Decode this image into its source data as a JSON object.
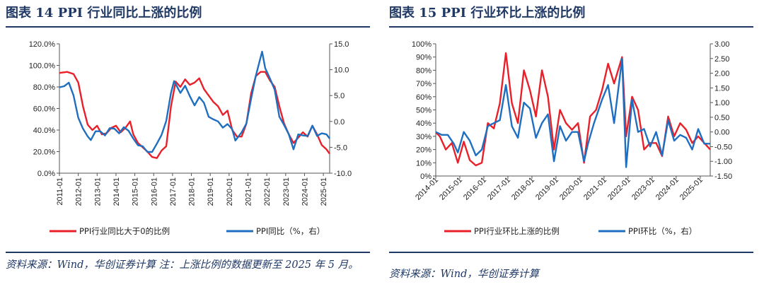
{
  "figures": [
    {
      "title": "图表 14   PPI 行业同比上涨的比例",
      "source": "资料来源：Wind，华创证券计算 注：上涨比例的数据更新至 2025 年 5 月。",
      "chart_data": {
        "type": "line",
        "x_ticks": [
          "2011-01",
          "2012-01",
          "2013-01",
          "2014-01",
          "2015-01",
          "2016-01",
          "2017-01",
          "2018-01",
          "2019-01",
          "2020-01",
          "2021-01",
          "2022-01",
          "2023-01",
          "2024-01",
          "2025-01"
        ],
        "x_range": [
          "2011-01",
          "2025-05"
        ],
        "y_left": {
          "ticks": [
            "0.0%",
            "20.0%",
            "40.0%",
            "60.0%",
            "80.0%",
            "100.0%",
            "120.0%"
          ],
          "min": 0,
          "max": 120
        },
        "y_right": {
          "ticks": [
            "-10.0",
            "-5.0",
            "0.0",
            "5.0",
            "10.0",
            "15.0"
          ],
          "min": -10,
          "max": 15
        },
        "series": [
          {
            "name": "PPI行业同比大于0的比例",
            "color": "#e8202a",
            "axis": "left",
            "points": [
              [
                "2011-01",
                93
              ],
              [
                "2011-06",
                94
              ],
              [
                "2011-10",
                92
              ],
              [
                "2012-01",
                84
              ],
              [
                "2012-04",
                62
              ],
              [
                "2012-07",
                45
              ],
              [
                "2012-10",
                40
              ],
              [
                "2013-01",
                44
              ],
              [
                "2013-04",
                36
              ],
              [
                "2013-07",
                37
              ],
              [
                "2013-10",
                42
              ],
              [
                "2014-01",
                44
              ],
              [
                "2014-04",
                38
              ],
              [
                "2014-07",
                42
              ],
              [
                "2014-10",
                48
              ],
              [
                "2014-12",
                36
              ],
              [
                "2015-03",
                28
              ],
              [
                "2015-06",
                24
              ],
              [
                "2015-09",
                20
              ],
              [
                "2015-12",
                15
              ],
              [
                "2016-03",
                14
              ],
              [
                "2016-06",
                21
              ],
              [
                "2016-09",
                25
              ],
              [
                "2016-12",
                62
              ],
              [
                "2017-03",
                85
              ],
              [
                "2017-06",
                80
              ],
              [
                "2017-09",
                87
              ],
              [
                "2017-12",
                82
              ],
              [
                "2018-03",
                84
              ],
              [
                "2018-06",
                88
              ],
              [
                "2018-09",
                78
              ],
              [
                "2018-12",
                72
              ],
              [
                "2019-03",
                66
              ],
              [
                "2019-06",
                62
              ],
              [
                "2019-09",
                54
              ],
              [
                "2019-12",
                58
              ],
              [
                "2020-03",
                40
              ],
              [
                "2020-06",
                34
              ],
              [
                "2020-09",
                34
              ],
              [
                "2020-12",
                46
              ],
              [
                "2021-03",
                74
              ],
              [
                "2021-06",
                90
              ],
              [
                "2021-09",
                94
              ],
              [
                "2021-12",
                94
              ],
              [
                "2022-03",
                86
              ],
              [
                "2022-06",
                80
              ],
              [
                "2022-09",
                62
              ],
              [
                "2022-12",
                46
              ],
              [
                "2023-03",
                36
              ],
              [
                "2023-06",
                28
              ],
              [
                "2023-09",
                33
              ],
              [
                "2023-12",
                38
              ],
              [
                "2024-03",
                34
              ],
              [
                "2024-06",
                44
              ],
              [
                "2024-09",
                36
              ],
              [
                "2024-12",
                26
              ],
              [
                "2025-03",
                22
              ],
              [
                "2025-05",
                18
              ]
            ]
          },
          {
            "name": "PPI同比（%，右）",
            "color": "#1f6fc1",
            "axis": "right",
            "points": [
              [
                "2011-01",
                6.6
              ],
              [
                "2011-04",
                6.8
              ],
              [
                "2011-07",
                7.5
              ],
              [
                "2011-10",
                5.0
              ],
              [
                "2012-01",
                0.7
              ],
              [
                "2012-04",
                -1.4
              ],
              [
                "2012-07",
                -2.9
              ],
              [
                "2012-09",
                -3.6
              ],
              [
                "2012-12",
                -1.9
              ],
              [
                "2013-03",
                -1.9
              ],
              [
                "2013-06",
                -2.7
              ],
              [
                "2013-09",
                -1.3
              ],
              [
                "2013-12",
                -1.4
              ],
              [
                "2014-03",
                -2.3
              ],
              [
                "2014-06",
                -1.1
              ],
              [
                "2014-09",
                -1.8
              ],
              [
                "2014-12",
                -3.3
              ],
              [
                "2015-03",
                -4.6
              ],
              [
                "2015-06",
                -4.8
              ],
              [
                "2015-09",
                -5.9
              ],
              [
                "2015-12",
                -5.9
              ],
              [
                "2016-03",
                -4.3
              ],
              [
                "2016-06",
                -2.6
              ],
              [
                "2016-09",
                0.1
              ],
              [
                "2016-12",
                5.5
              ],
              [
                "2017-02",
                7.8
              ],
              [
                "2017-06",
                5.5
              ],
              [
                "2017-09",
                6.9
              ],
              [
                "2017-12",
                4.9
              ],
              [
                "2018-03",
                3.1
              ],
              [
                "2018-06",
                4.7
              ],
              [
                "2018-09",
                3.6
              ],
              [
                "2018-12",
                0.9
              ],
              [
                "2019-03",
                0.4
              ],
              [
                "2019-06",
                0.0
              ],
              [
                "2019-09",
                -1.2
              ],
              [
                "2019-12",
                -0.5
              ],
              [
                "2020-03",
                -1.5
              ],
              [
                "2020-05",
                -3.7
              ],
              [
                "2020-09",
                -2.1
              ],
              [
                "2020-12",
                -0.4
              ],
              [
                "2021-03",
                4.4
              ],
              [
                "2021-06",
                8.8
              ],
              [
                "2021-10",
                13.5
              ],
              [
                "2021-12",
                10.3
              ],
              [
                "2022-03",
                8.3
              ],
              [
                "2022-06",
                6.1
              ],
              [
                "2022-09",
                0.9
              ],
              [
                "2022-12",
                -0.7
              ],
              [
                "2023-03",
                -2.5
              ],
              [
                "2023-06",
                -5.4
              ],
              [
                "2023-09",
                -2.5
              ],
              [
                "2023-12",
                -2.7
              ],
              [
                "2024-03",
                -2.8
              ],
              [
                "2024-06",
                -0.8
              ],
              [
                "2024-09",
                -2.8
              ],
              [
                "2024-12",
                -2.3
              ],
              [
                "2025-03",
                -2.5
              ],
              [
                "2025-05",
                -3.3
              ]
            ]
          }
        ]
      }
    },
    {
      "title": "图表 15   PPI 行业环比上涨的比例",
      "source": "资料来源：Wind，华创证券计算",
      "chart_data": {
        "type": "line",
        "x_ticks": [
          "2014-01",
          "2015-01",
          "2016-01",
          "2017-01",
          "2018-01",
          "2019-01",
          "2020-01",
          "2021-01",
          "2022-01",
          "2023-01",
          "2024-01",
          "2025-01"
        ],
        "x_range": [
          "2014-01",
          "2025-06"
        ],
        "y_left": {
          "ticks": [
            "0%",
            "10%",
            "20%",
            "30%",
            "40%",
            "50%",
            "60%",
            "70%",
            "80%",
            "90%",
            "100%"
          ],
          "min": 0,
          "max": 100
        },
        "y_right": {
          "ticks": [
            "-1.50",
            "-1.00",
            "-0.50",
            "0.00",
            "0.50",
            "1.00",
            "1.50",
            "2.00",
            "2.50",
            "3.00"
          ],
          "min": -1.5,
          "max": 3.0
        },
        "series": [
          {
            "name": "PPI行业环比上涨的比例",
            "color": "#e8202a",
            "axis": "left",
            "points": [
              [
                "2014-01",
                33
              ],
              [
                "2014-03",
                30
              ],
              [
                "2014-06",
                20
              ],
              [
                "2014-09",
                25
              ],
              [
                "2014-12",
                10
              ],
              [
                "2015-03",
                26
              ],
              [
                "2015-06",
                12
              ],
              [
                "2015-09",
                8
              ],
              [
                "2015-12",
                10
              ],
              [
                "2016-03",
                40
              ],
              [
                "2016-06",
                36
              ],
              [
                "2016-09",
                55
              ],
              [
                "2016-12",
                93
              ],
              [
                "2017-03",
                55
              ],
              [
                "2017-06",
                40
              ],
              [
                "2017-09",
                80
              ],
              [
                "2017-12",
                65
              ],
              [
                "2018-03",
                45
              ],
              [
                "2018-06",
                80
              ],
              [
                "2018-09",
                60
              ],
              [
                "2018-12",
                20
              ],
              [
                "2019-03",
                50
              ],
              [
                "2019-06",
                40
              ],
              [
                "2019-09",
                35
              ],
              [
                "2019-12",
                40
              ],
              [
                "2020-03",
                10
              ],
              [
                "2020-06",
                45
              ],
              [
                "2020-09",
                50
              ],
              [
                "2020-12",
                65
              ],
              [
                "2021-03",
                85
              ],
              [
                "2021-06",
                70
              ],
              [
                "2021-10",
                90
              ],
              [
                "2021-12",
                30
              ],
              [
                "2022-03",
                60
              ],
              [
                "2022-06",
                50
              ],
              [
                "2022-09",
                20
              ],
              [
                "2022-12",
                25
              ],
              [
                "2023-03",
                25
              ],
              [
                "2023-06",
                15
              ],
              [
                "2023-09",
                45
              ],
              [
                "2023-12",
                30
              ],
              [
                "2024-03",
                40
              ],
              [
                "2024-06",
                35
              ],
              [
                "2024-09",
                25
              ],
              [
                "2024-12",
                30
              ],
              [
                "2025-03",
                25
              ],
              [
                "2025-06",
                20
              ]
            ]
          },
          {
            "name": "PPI环比（%，右）",
            "color": "#1f6fc1",
            "axis": "right",
            "points": [
              [
                "2014-01",
                0.0
              ],
              [
                "2014-04",
                -0.1
              ],
              [
                "2014-07",
                -0.1
              ],
              [
                "2014-10",
                -0.4
              ],
              [
                "2014-12",
                -0.7
              ],
              [
                "2015-03",
                0.0
              ],
              [
                "2015-06",
                -0.3
              ],
              [
                "2015-09",
                -0.8
              ],
              [
                "2015-12",
                -0.6
              ],
              [
                "2016-03",
                0.2
              ],
              [
                "2016-06",
                0.3
              ],
              [
                "2016-09",
                0.4
              ],
              [
                "2016-12",
                1.6
              ],
              [
                "2017-03",
                0.2
              ],
              [
                "2017-06",
                -0.2
              ],
              [
                "2017-09",
                1.0
              ],
              [
                "2017-12",
                0.8
              ],
              [
                "2018-03",
                -0.2
              ],
              [
                "2018-06",
                0.3
              ],
              [
                "2018-09",
                0.6
              ],
              [
                "2018-12",
                -1.0
              ],
              [
                "2019-03",
                0.2
              ],
              [
                "2019-06",
                -0.3
              ],
              [
                "2019-09",
                0.0
              ],
              [
                "2019-12",
                0.0
              ],
              [
                "2020-03",
                -1.0
              ],
              [
                "2020-05",
                -0.4
              ],
              [
                "2020-08",
                0.3
              ],
              [
                "2020-12",
                1.1
              ],
              [
                "2021-03",
                1.6
              ],
              [
                "2021-06",
                0.3
              ],
              [
                "2021-10",
                2.5
              ],
              [
                "2021-12",
                -1.2
              ],
              [
                "2022-03",
                1.1
              ],
              [
                "2022-06",
                0.0
              ],
              [
                "2022-09",
                0.1
              ],
              [
                "2022-12",
                -0.5
              ],
              [
                "2023-03",
                0.0
              ],
              [
                "2023-06",
                -0.8
              ],
              [
                "2023-09",
                0.4
              ],
              [
                "2023-12",
                -0.3
              ],
              [
                "2024-03",
                -0.1
              ],
              [
                "2024-06",
                -0.2
              ],
              [
                "2024-09",
                -0.6
              ],
              [
                "2024-12",
                0.1
              ],
              [
                "2025-03",
                -0.4
              ],
              [
                "2025-06",
                -0.4
              ]
            ]
          }
        ]
      }
    }
  ]
}
